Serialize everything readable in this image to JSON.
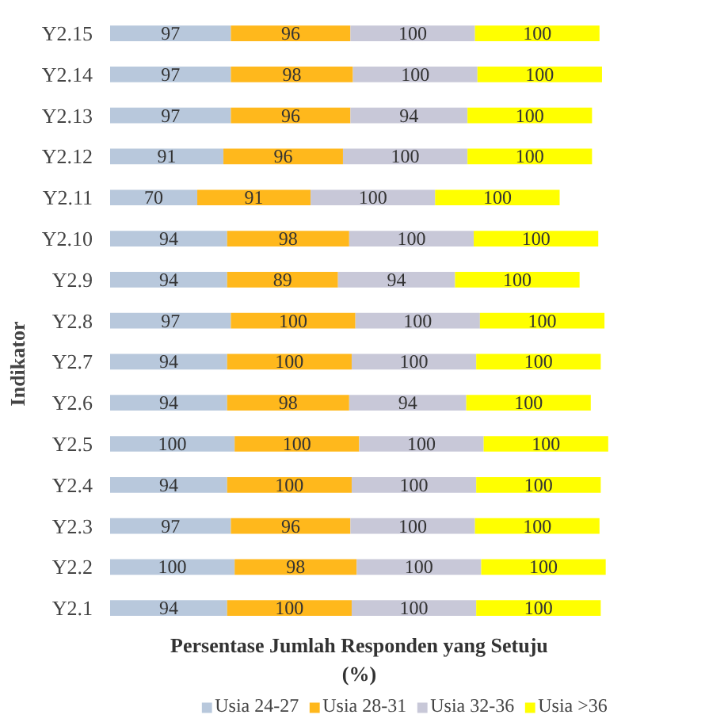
{
  "chart_data": {
    "type": "bar",
    "orientation": "horizontal",
    "stacked": true,
    "data_labels": true,
    "grid": false,
    "legend": "bottom",
    "xlabel": "Persentase Jumlah Responden yang Setuju (%)",
    "ylabel": "Indikator",
    "categories": [
      "Y2.15",
      "Y2.14",
      "Y2.13",
      "Y2.12",
      "Y2.11",
      "Y2.10",
      "Y2.9",
      "Y2.8",
      "Y2.7",
      "Y2.6",
      "Y2.5",
      "Y2.4",
      "Y2.3",
      "Y2.2",
      "Y2.1"
    ],
    "series": [
      {
        "name": "Usia 24-27",
        "color": "#b8c8dc",
        "values": [
          97,
          97,
          97,
          91,
          70,
          94,
          94,
          97,
          94,
          94,
          100,
          94,
          97,
          100,
          94
        ]
      },
      {
        "name": "Usia 28-31",
        "color": "#ffb81c",
        "values": [
          96,
          98,
          96,
          96,
          91,
          98,
          89,
          100,
          100,
          98,
          100,
          100,
          96,
          98,
          100
        ]
      },
      {
        "name": "Usia 32-36",
        "color": "#c8c8d8",
        "values": [
          100,
          100,
          94,
          100,
          100,
          100,
          94,
          100,
          100,
          94,
          100,
          100,
          100,
          100,
          100
        ]
      },
      {
        "name": "Usia >36",
        "color": "#ffff00",
        "values": [
          100,
          100,
          100,
          100,
          100,
          100,
          100,
          100,
          100,
          100,
          100,
          100,
          100,
          100,
          100
        ]
      }
    ]
  }
}
